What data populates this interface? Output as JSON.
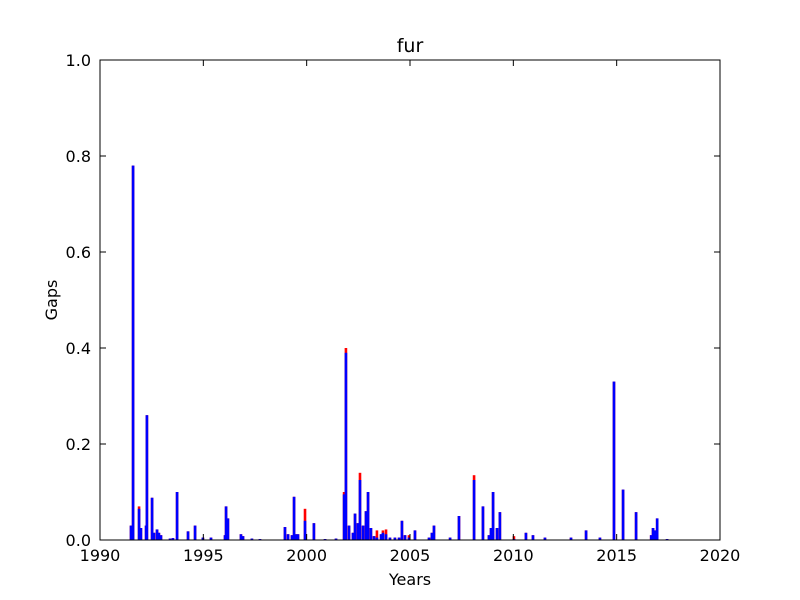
{
  "chart_data": {
    "type": "bar",
    "title": "fur",
    "x_label": "Years",
    "y_label": "Gaps",
    "x": [
      1991.5,
      1991.6,
      1991.89,
      1991.98,
      1992.23,
      1992.27,
      1992.52,
      1992.61,
      1992.76,
      1992.85,
      1992.95,
      1993.39,
      1993.53,
      1993.73,
      1994.26,
      1994.6,
      1994.98,
      1995.37,
      1996.05,
      1996.1,
      1996.19,
      1996.82,
      1996.92,
      1997.35,
      1997.74,
      1998.95,
      1999.1,
      1999.29,
      1999.39,
      1999.48,
      1999.58,
      1999.92,
      2000.35,
      2000.89,
      2001.42,
      2001.81,
      2001.9,
      2002.05,
      2002.24,
      2002.34,
      2002.48,
      2002.58,
      2002.73,
      2002.87,
      2002.97,
      2003.11,
      2003.26,
      2003.4,
      2003.6,
      2003.69,
      2003.84,
      2004.03,
      2004.27,
      2004.47,
      2004.61,
      2004.76,
      2004.95,
      2005.24,
      2005.92,
      2006.06,
      2006.16,
      2006.94,
      2007.37,
      2008.1,
      2008.53,
      2008.82,
      2008.92,
      2009.02,
      2009.21,
      2009.35,
      2010.03,
      2010.61,
      2010.95,
      2011.53,
      2012.79,
      2013.52,
      2014.19,
      2014.87,
      2015.31,
      2015.94,
      2016.67,
      2016.76,
      2016.86,
      2016.96,
      2017.44
    ],
    "series": [
      {
        "color": "#ff0000",
        "values": [
          0.03,
          0.78,
          0.07,
          0.025,
          0.03,
          0.26,
          0.088,
          0.015,
          0.022,
          0.015,
          0.01,
          0.003,
          0.004,
          0.1,
          0.018,
          0.03,
          0.005,
          0.005,
          0.01,
          0.07,
          0.045,
          0.012,
          0.008,
          0.003,
          0.002,
          0.027,
          0.012,
          0.01,
          0.09,
          0.012,
          0.012,
          0.065,
          0.035,
          0.002,
          0.003,
          0.1,
          0.4,
          0.03,
          0.015,
          0.055,
          0.035,
          0.14,
          0.03,
          0.06,
          0.1,
          0.025,
          0.008,
          0.02,
          0.012,
          0.02,
          0.022,
          0.005,
          0.005,
          0.005,
          0.04,
          0.01,
          0.01,
          0.02,
          0.005,
          0.015,
          0.03,
          0.005,
          0.05,
          0.135,
          0.07,
          0.01,
          0.025,
          0.1,
          0.025,
          0.058,
          0.008,
          0.015,
          0.01,
          0.005,
          0.005,
          0.02,
          0.005,
          0.33,
          0.105,
          0.058,
          0.01,
          0.025,
          0.02,
          0.045,
          0.002
        ]
      },
      {
        "color": "#0000ff",
        "values": [
          0.03,
          0.78,
          0.065,
          0.025,
          0.03,
          0.26,
          0.088,
          0.015,
          0.022,
          0.015,
          0.01,
          0.003,
          0.004,
          0.1,
          0.018,
          0.03,
          0.005,
          0.005,
          0.01,
          0.07,
          0.045,
          0.012,
          0.008,
          0.003,
          0.002,
          0.027,
          0.012,
          0.01,
          0.09,
          0.012,
          0.012,
          0.04,
          0.035,
          0.002,
          0.003,
          0.095,
          0.39,
          0.03,
          0.015,
          0.055,
          0.035,
          0.125,
          0.03,
          0.06,
          0.1,
          0.025,
          0.008,
          0.005,
          0.012,
          0.015,
          0.012,
          0.005,
          0.005,
          0.005,
          0.04,
          0.01,
          0.005,
          0.02,
          0.005,
          0.015,
          0.03,
          0.005,
          0.05,
          0.125,
          0.07,
          0.01,
          0.025,
          0.1,
          0.025,
          0.058,
          0.002,
          0.015,
          0.01,
          0.005,
          0.005,
          0.02,
          0.005,
          0.33,
          0.105,
          0.058,
          0.01,
          0.025,
          0.02,
          0.045,
          0.002
        ]
      }
    ],
    "xlim": [
      1990,
      2020
    ],
    "xticks": [
      1990,
      1995,
      2000,
      2005,
      2010,
      2015,
      2020
    ],
    "ylim": [
      0,
      1
    ],
    "yticks": [
      {
        "value": 0,
        "label": "0.0"
      },
      0.2,
      0.4,
      0.6,
      0.8,
      {
        "value": 1,
        "label": "1.0"
      }
    ]
  }
}
